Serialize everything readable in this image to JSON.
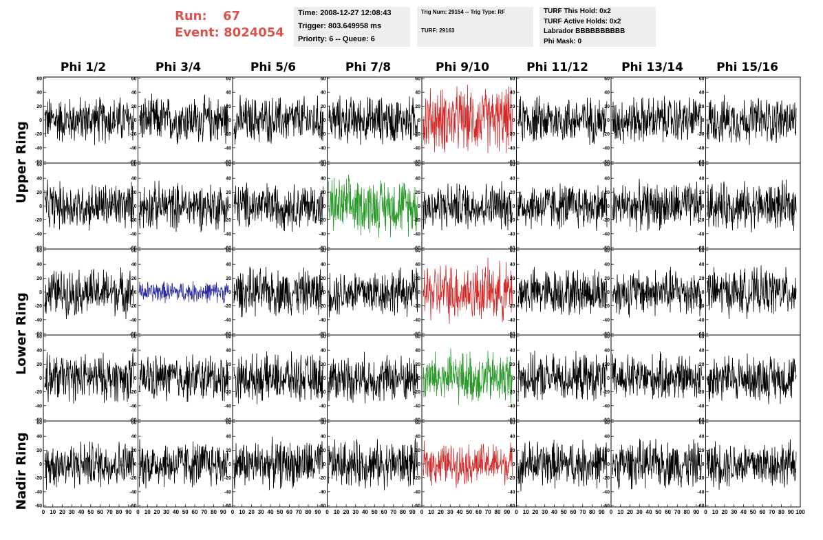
{
  "run": {
    "run_label": "Run:",
    "run_value": "67",
    "event_label": "Event:",
    "event_value": "8024054"
  },
  "info1": {
    "time": "Time: 2008-12-27 12:08:43",
    "trigger": "Trigger: 803.649958 ms",
    "priority": "Priority: 6 -- Queue: 6"
  },
  "info2": {
    "trig": "Trig Num: 29154 -- Trig Type: RF",
    "turf": "TURF: 29163"
  },
  "info3": {
    "hold": "TURF This Hold: 0x2",
    "active": "TURF Active Holds: 0x2",
    "labrador": "Labrador BBBBBBBBBB",
    "phimask": "Phi Mask: 0"
  },
  "columns": [
    "Phi 1/2",
    "Phi 3/4",
    "Phi 5/6",
    "Phi 7/8",
    "Phi 9/10",
    "Phi 11/12",
    "Phi 13/14",
    "Phi 15/16"
  ],
  "rings": [
    "Upper Ring",
    "Lower Ring",
    "Nadir Ring"
  ],
  "chart_data": {
    "type": "line",
    "rows": 5,
    "cols": 8,
    "yticks": [
      -60,
      -40,
      -20,
      0,
      20,
      40,
      60
    ],
    "ylim": [
      -60,
      60
    ],
    "xticks": [
      0,
      10,
      20,
      30,
      40,
      50,
      60,
      70,
      80,
      90,
      100
    ],
    "xlim": [
      0,
      100
    ],
    "colors": {
      "default": "#000000",
      "red": "#d42a2a",
      "green": "#2a9a2a",
      "blue": "#2a2aa0"
    },
    "highlighted_panels": [
      {
        "row": 0,
        "col": 4,
        "color": "red",
        "amplitude": 55
      },
      {
        "row": 1,
        "col": 3,
        "color": "green",
        "amplitude": 48
      },
      {
        "row": 2,
        "col": 1,
        "color": "blue",
        "amplitude": 18
      },
      {
        "row": 2,
        "col": 4,
        "color": "red",
        "amplitude": 50
      },
      {
        "row": 3,
        "col": 4,
        "color": "green",
        "amplitude": 45
      },
      {
        "row": 4,
        "col": 4,
        "color": "red",
        "amplitude": 35
      }
    ],
    "default_amplitude": 40
  }
}
